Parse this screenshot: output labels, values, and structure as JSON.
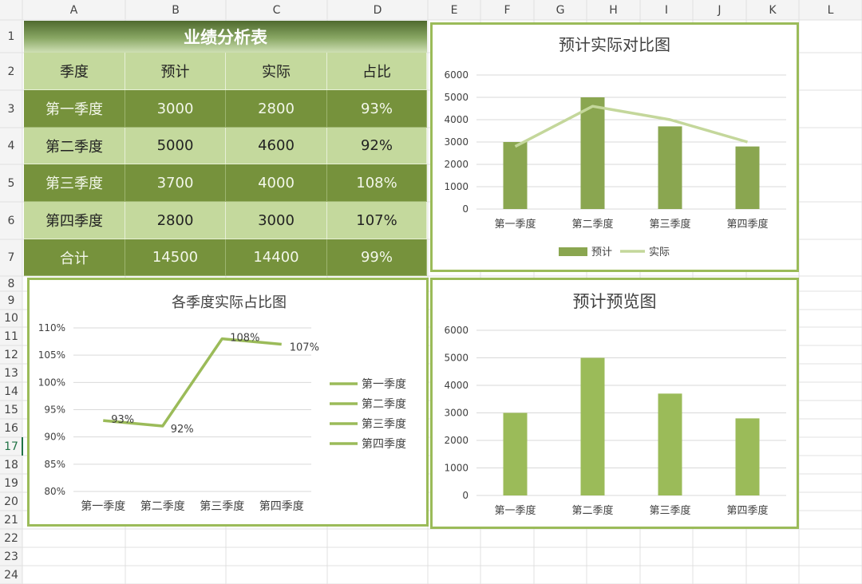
{
  "columns": [
    "A",
    "B",
    "C",
    "D",
    "E",
    "F",
    "G",
    "H",
    "I",
    "J",
    "K",
    "L"
  ],
  "rows": [
    "1",
    "2",
    "3",
    "4",
    "5",
    "6",
    "7",
    "8",
    "9",
    "10",
    "11",
    "12",
    "13",
    "14",
    "15",
    "16",
    "17",
    "18",
    "19",
    "20",
    "21",
    "22",
    "23",
    "24"
  ],
  "table": {
    "title": "业绩分析表",
    "headers": [
      "季度",
      "预计",
      "实际",
      "占比"
    ],
    "rows": [
      [
        "第一季度",
        "3000",
        "2800",
        "93%"
      ],
      [
        "第二季度",
        "5000",
        "4600",
        "92%"
      ],
      [
        "第三季度",
        "3700",
        "4000",
        "108%"
      ],
      [
        "第四季度",
        "2800",
        "3000",
        "107%"
      ],
      [
        "合计",
        "14500",
        "14400",
        "99%"
      ]
    ]
  },
  "colors": {
    "bar": "#9bbb59",
    "bar_dark": "#8aa650",
    "line_light": "#c4d79b",
    "line": "#9bbb59",
    "border": "#9bbb59",
    "header_dark": "#76923c",
    "header_light": "#c4d99d"
  },
  "chart_data": [
    {
      "type": "bar+line",
      "title": "预计实际对比图",
      "categories": [
        "第一季度",
        "第二季度",
        "第三季度",
        "第四季度"
      ],
      "series": [
        {
          "name": "预计",
          "kind": "bar",
          "values": [
            3000,
            5000,
            3700,
            2800
          ]
        },
        {
          "name": "实际",
          "kind": "line",
          "values": [
            2800,
            4600,
            4000,
            3000
          ]
        }
      ],
      "yticks": [
        "0",
        "1000",
        "2000",
        "3000",
        "4000",
        "5000",
        "6000"
      ],
      "ylim": [
        0,
        6000
      ],
      "legend": "bottom"
    },
    {
      "type": "line",
      "title": "各季度实际占比图",
      "categories": [
        "第一季度",
        "第二季度",
        "第三季度",
        "第四季度"
      ],
      "values": [
        93,
        92,
        108,
        107
      ],
      "labels": [
        "93%",
        "92%",
        "108%",
        "107%"
      ],
      "yticks": [
        "80%",
        "85%",
        "90%",
        "95%",
        "100%",
        "105%",
        "110%"
      ],
      "ylim": [
        80,
        110
      ],
      "legend_entries": [
        "第一季度",
        "第二季度",
        "第三季度",
        "第四季度"
      ],
      "legend": "right"
    },
    {
      "type": "bar",
      "title": "预计预览图",
      "categories": [
        "第一季度",
        "第二季度",
        "第三季度",
        "第四季度"
      ],
      "values": [
        3000,
        5000,
        3700,
        2800
      ],
      "yticks": [
        "0",
        "1000",
        "2000",
        "3000",
        "4000",
        "5000",
        "6000"
      ],
      "ylim": [
        0,
        6000
      ]
    }
  ]
}
